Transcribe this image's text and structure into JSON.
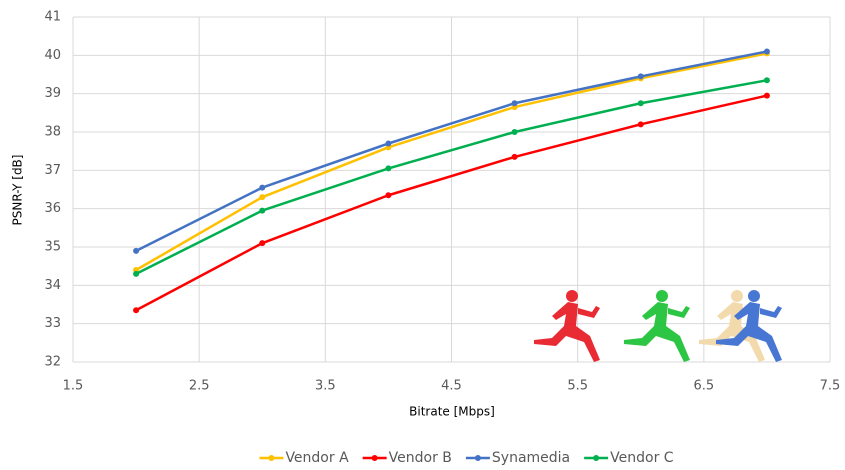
{
  "chart_data": {
    "type": "line",
    "x_label": "Bitrate [Mbps]",
    "y_label": "PSNR-Y [dB]",
    "x": [
      2,
      3,
      4,
      5,
      6,
      7
    ],
    "series": [
      {
        "name": "Vendor A",
        "color": "#ffc000",
        "values": [
          34.4,
          36.3,
          37.6,
          38.65,
          39.4,
          40.05
        ]
      },
      {
        "name": "Vendor B",
        "color": "#ff0000",
        "values": [
          33.35,
          35.1,
          36.35,
          37.35,
          38.2,
          38.95
        ]
      },
      {
        "name": "Synamedia",
        "color": "#4472c4",
        "values": [
          34.9,
          36.55,
          37.7,
          38.75,
          39.45,
          40.1
        ]
      },
      {
        "name": "Vendor C",
        "color": "#00b050",
        "values": [
          34.3,
          35.95,
          37.05,
          38.0,
          38.75,
          39.35
        ]
      }
    ],
    "xlim": [
      1.5,
      7.5
    ],
    "xticks": [
      1.5,
      2.5,
      3.5,
      4.5,
      5.5,
      6.5,
      7.5
    ],
    "ylim": [
      32,
      41
    ],
    "yticks": [
      32,
      33,
      34,
      35,
      36,
      37,
      38,
      39,
      40,
      41
    ],
    "grid": true,
    "legend": "bottom"
  }
}
